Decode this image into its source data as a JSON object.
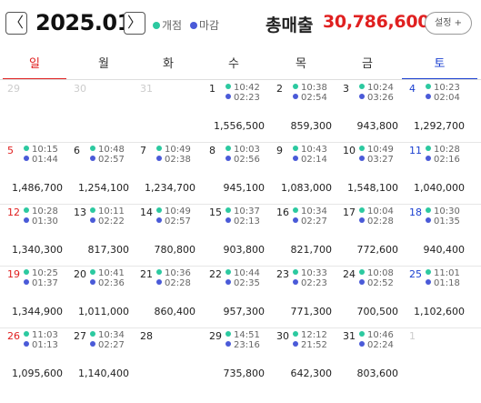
{
  "header": {
    "prev_label": "〈",
    "next_label": "〉",
    "month": "2025.01",
    "legend_open": "개점",
    "legend_close": "마감",
    "total_label": "총매출",
    "total_value": "30,786,600",
    "settings_label": "설정 +"
  },
  "colors": {
    "open_dot": "#2cc9a0",
    "close_dot": "#4a5ad8",
    "sunday": "#e02020",
    "saturday": "#1a3fd0",
    "total": "#e02020"
  },
  "weekdays": [
    "일",
    "월",
    "화",
    "수",
    "목",
    "금",
    "토"
  ],
  "weeks": [
    [
      {
        "day": "29",
        "muted": true
      },
      {
        "day": "30",
        "muted": true
      },
      {
        "day": "31",
        "muted": true
      },
      {
        "day": "1",
        "open": "10:42",
        "close": "02:23",
        "amount": "1,556,500"
      },
      {
        "day": "2",
        "open": "10:38",
        "close": "02:54",
        "amount": "859,300"
      },
      {
        "day": "3",
        "open": "10:24",
        "close": "03:26",
        "amount": "943,800"
      },
      {
        "day": "4",
        "open": "10:23",
        "close": "02:04",
        "amount": "1,292,700"
      }
    ],
    [
      {
        "day": "5",
        "open": "10:15",
        "close": "01:44",
        "amount": "1,486,700"
      },
      {
        "day": "6",
        "open": "10:48",
        "close": "02:57",
        "amount": "1,254,100"
      },
      {
        "day": "7",
        "open": "10:49",
        "close": "02:38",
        "amount": "1,234,700"
      },
      {
        "day": "8",
        "open": "10:03",
        "close": "02:56",
        "amount": "945,100"
      },
      {
        "day": "9",
        "open": "10:43",
        "close": "02:14",
        "amount": "1,083,000"
      },
      {
        "day": "10",
        "open": "10:49",
        "close": "03:27",
        "amount": "1,548,100"
      },
      {
        "day": "11",
        "open": "10:28",
        "close": "02:16",
        "amount": "1,040,000"
      }
    ],
    [
      {
        "day": "12",
        "open": "10:28",
        "close": "01:30",
        "amount": "1,340,300"
      },
      {
        "day": "13",
        "open": "10:11",
        "close": "02:22",
        "amount": "817,300"
      },
      {
        "day": "14",
        "open": "10:49",
        "close": "02:57",
        "amount": "780,800"
      },
      {
        "day": "15",
        "open": "10:37",
        "close": "02:13",
        "amount": "903,800"
      },
      {
        "day": "16",
        "open": "10:34",
        "close": "02:27",
        "amount": "821,700"
      },
      {
        "day": "17",
        "open": "10:04",
        "close": "02:28",
        "amount": "772,600"
      },
      {
        "day": "18",
        "open": "10:30",
        "close": "01:35",
        "amount": "940,400"
      }
    ],
    [
      {
        "day": "19",
        "open": "10:25",
        "close": "01:37",
        "amount": "1,344,900"
      },
      {
        "day": "20",
        "open": "10:41",
        "close": "02:36",
        "amount": "1,011,000"
      },
      {
        "day": "21",
        "open": "10:36",
        "close": "02:28",
        "amount": "860,400"
      },
      {
        "day": "22",
        "open": "10:44",
        "close": "02:35",
        "amount": "957,300"
      },
      {
        "day": "23",
        "open": "10:33",
        "close": "02:23",
        "amount": "771,300"
      },
      {
        "day": "24",
        "open": "10:08",
        "close": "02:52",
        "amount": "700,500"
      },
      {
        "day": "25",
        "open": "11:01",
        "close": "01:18",
        "amount": "1,102,600"
      }
    ],
    [
      {
        "day": "26",
        "open": "11:03",
        "close": "01:13",
        "amount": "1,095,600"
      },
      {
        "day": "27",
        "open": "10:34",
        "close": "02:27",
        "amount": "1,140,400"
      },
      {
        "day": "28"
      },
      {
        "day": "29",
        "open": "14:51",
        "close": "23:16",
        "amount": "735,800"
      },
      {
        "day": "30",
        "open": "12:12",
        "close": "21:52",
        "amount": "642,300"
      },
      {
        "day": "31",
        "open": "10:46",
        "close": "02:24",
        "amount": "803,600"
      },
      {
        "day": "1",
        "muted": true
      }
    ]
  ]
}
